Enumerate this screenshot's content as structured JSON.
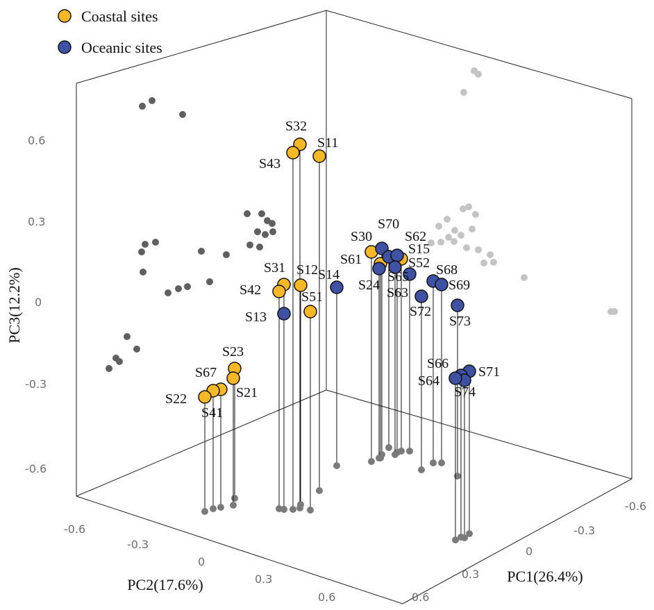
{
  "chart_data": {
    "type": "scatter",
    "subtype": "3d-pca",
    "legend": [
      {
        "name": "Coastal sites",
        "color": "#f6b826"
      },
      {
        "name": "Oceanic sites",
        "color": "#3f51a3"
      }
    ],
    "axes": {
      "pc1": {
        "label": "PC1(26.4%)",
        "ticks": [
          "-0.6",
          "-0.3",
          "0",
          "0.3",
          "0.6"
        ]
      },
      "pc2": {
        "label": "PC2(17.6%)",
        "ticks": [
          "-0.6",
          "-0.3",
          "0",
          "0.3",
          "0.6"
        ]
      },
      "pc3": {
        "label": "PC3(12.2%)",
        "ticks": [
          "0.6",
          "0.3",
          "0",
          "-0.3",
          "-0.6"
        ]
      }
    },
    "series": [
      {
        "name": "Coastal sites",
        "points": [
          {
            "label": "S32",
            "pc3": 0.58
          },
          {
            "label": "S43",
            "pc3": 0.55
          },
          {
            "label": "S11",
            "pc3": 0.54
          },
          {
            "label": "S30",
            "pc3": 0.17
          },
          {
            "label": "S52",
            "pc3": 0.16
          },
          {
            "label": "S61",
            "pc3": 0.15
          },
          {
            "label": "S31",
            "pc3": 0.06
          },
          {
            "label": "S12",
            "pc3": 0.06
          },
          {
            "label": "S42",
            "pc3": 0.04
          },
          {
            "label": "S51",
            "pc3": -0.04
          },
          {
            "label": "S23",
            "pc3": -0.24
          },
          {
            "label": "S21",
            "pc3": -0.27
          },
          {
            "label": "S67",
            "pc3": -0.31
          },
          {
            "label": "S41",
            "pc3": -0.32
          },
          {
            "label": "S22",
            "pc3": -0.33
          }
        ]
      },
      {
        "name": "Oceanic sites",
        "points": [
          {
            "label": "S70",
            "pc3": 0.19
          },
          {
            "label": "S62",
            "pc3": 0.15
          },
          {
            "label": "S15",
            "pc3": 0.14
          },
          {
            "label": "S24",
            "pc3": 0.12
          },
          {
            "label": "S65",
            "pc3": 0.13
          },
          {
            "label": "S14",
            "pc3": 0.05
          },
          {
            "label": "S13",
            "pc3": -0.04
          },
          {
            "label": "S63",
            "pc3": 0.07
          },
          {
            "label": "S68",
            "pc3": 0.07
          },
          {
            "label": "S69",
            "pc3": 0.06
          },
          {
            "label": "S72",
            "pc3": 0.02
          },
          {
            "label": "S73",
            "pc3": -0.01
          },
          {
            "label": "S71",
            "pc3": -0.24
          },
          {
            "label": "S66",
            "pc3": -0.25
          },
          {
            "label": "S74",
            "pc3": -0.26
          },
          {
            "label": "S64",
            "pc3": -0.27
          }
        ]
      }
    ]
  }
}
